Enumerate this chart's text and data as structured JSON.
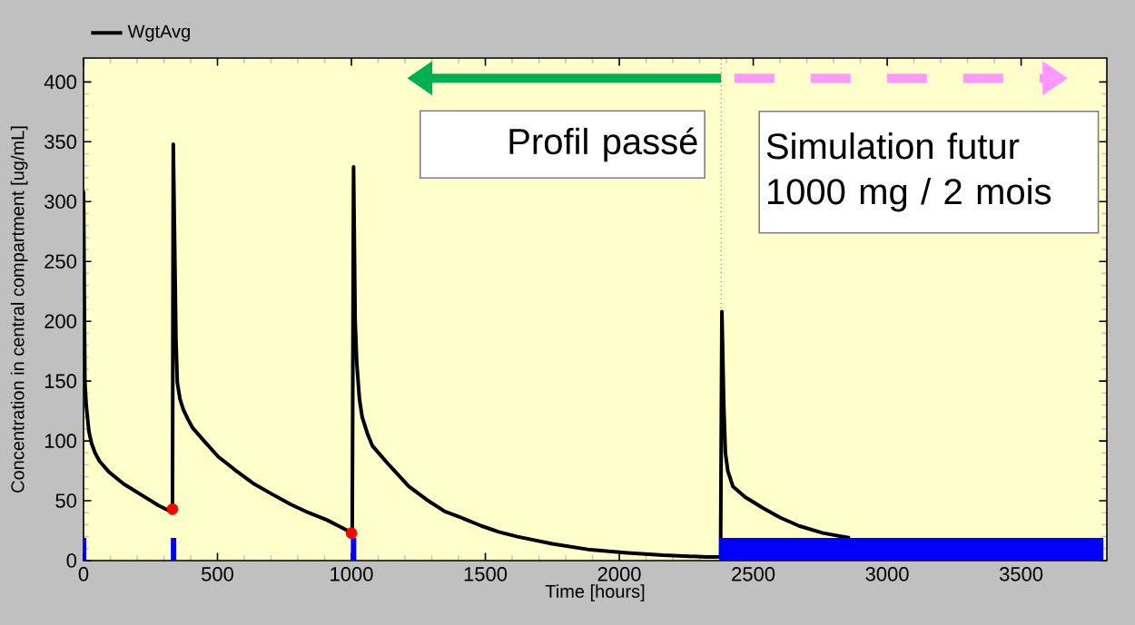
{
  "chart_data": {
    "type": "line",
    "xlabel": "Time [hours]",
    "ylabel": "Concentration in central compartment [ug/mL]",
    "xlim": [
      0,
      3820
    ],
    "ylim": [
      0,
      420
    ],
    "xticks": [
      0,
      500,
      1000,
      1500,
      2000,
      2500,
      3000,
      3500
    ],
    "yticks": [
      0,
      50,
      100,
      150,
      200,
      250,
      300,
      350,
      400
    ],
    "grid": false,
    "legend": "top left",
    "annotations": [
      "Profil passé",
      "Simulation futur",
      "1000 mg / 2 mois"
    ],
    "ref_lines": [
      {
        "axis": "x",
        "value": 2380,
        "color": "#000000",
        "line_style": "dotted"
      }
    ],
    "series": [
      {
        "name": "WgtAvg",
        "color": "#000000",
        "x": [
          0,
          5,
          10,
          20,
          30,
          43,
          60,
          95,
          150,
          230,
          280,
          325,
          332,
          335,
          345,
          350,
          360,
          373,
          390,
          407,
          450,
          502,
          570,
          637,
          700,
          773,
          840,
          908,
          960,
          1003,
          1008,
          1014,
          1020,
          1030,
          1040,
          1060,
          1078,
          1140,
          1214,
          1280,
          1349,
          1420,
          1485,
          1550,
          1620,
          1750,
          1892,
          2030,
          2163,
          2325,
          2378,
          2383,
          2390,
          2396,
          2405,
          2424,
          2470,
          2536,
          2600,
          2671,
          2760,
          2861
        ],
        "values": [
          309,
          150,
          130,
          108,
          98,
          90,
          83,
          74,
          64,
          53,
          46,
          41,
          40,
          348,
          185,
          149,
          135,
          126,
          118,
          111,
          100,
          87,
          75,
          64,
          56,
          47,
          40,
          34,
          28,
          23,
          329,
          200,
          165,
          135,
          120,
          106,
          96,
          80,
          62,
          51,
          41,
          35,
          29,
          24,
          20,
          14,
          9,
          6.5,
          4.5,
          3,
          3,
          208,
          130,
          90,
          75,
          62,
          53,
          44,
          36,
          29,
          23,
          19
        ]
      },
      {
        "type": "scatter",
        "color": "#ff0000",
        "marker": "circle",
        "x": [
          332,
          1000
        ],
        "values": [
          43,
          23
        ]
      },
      {
        "type": "bar",
        "color": "#0000ff",
        "x": [
          0,
          336,
          1008
        ],
        "values": [
          19,
          19,
          19
        ]
      },
      {
        "type": "area",
        "color": "#0000ff",
        "x": [
          2373,
          3807
        ],
        "values": [
          19,
          19
        ]
      }
    ]
  }
}
